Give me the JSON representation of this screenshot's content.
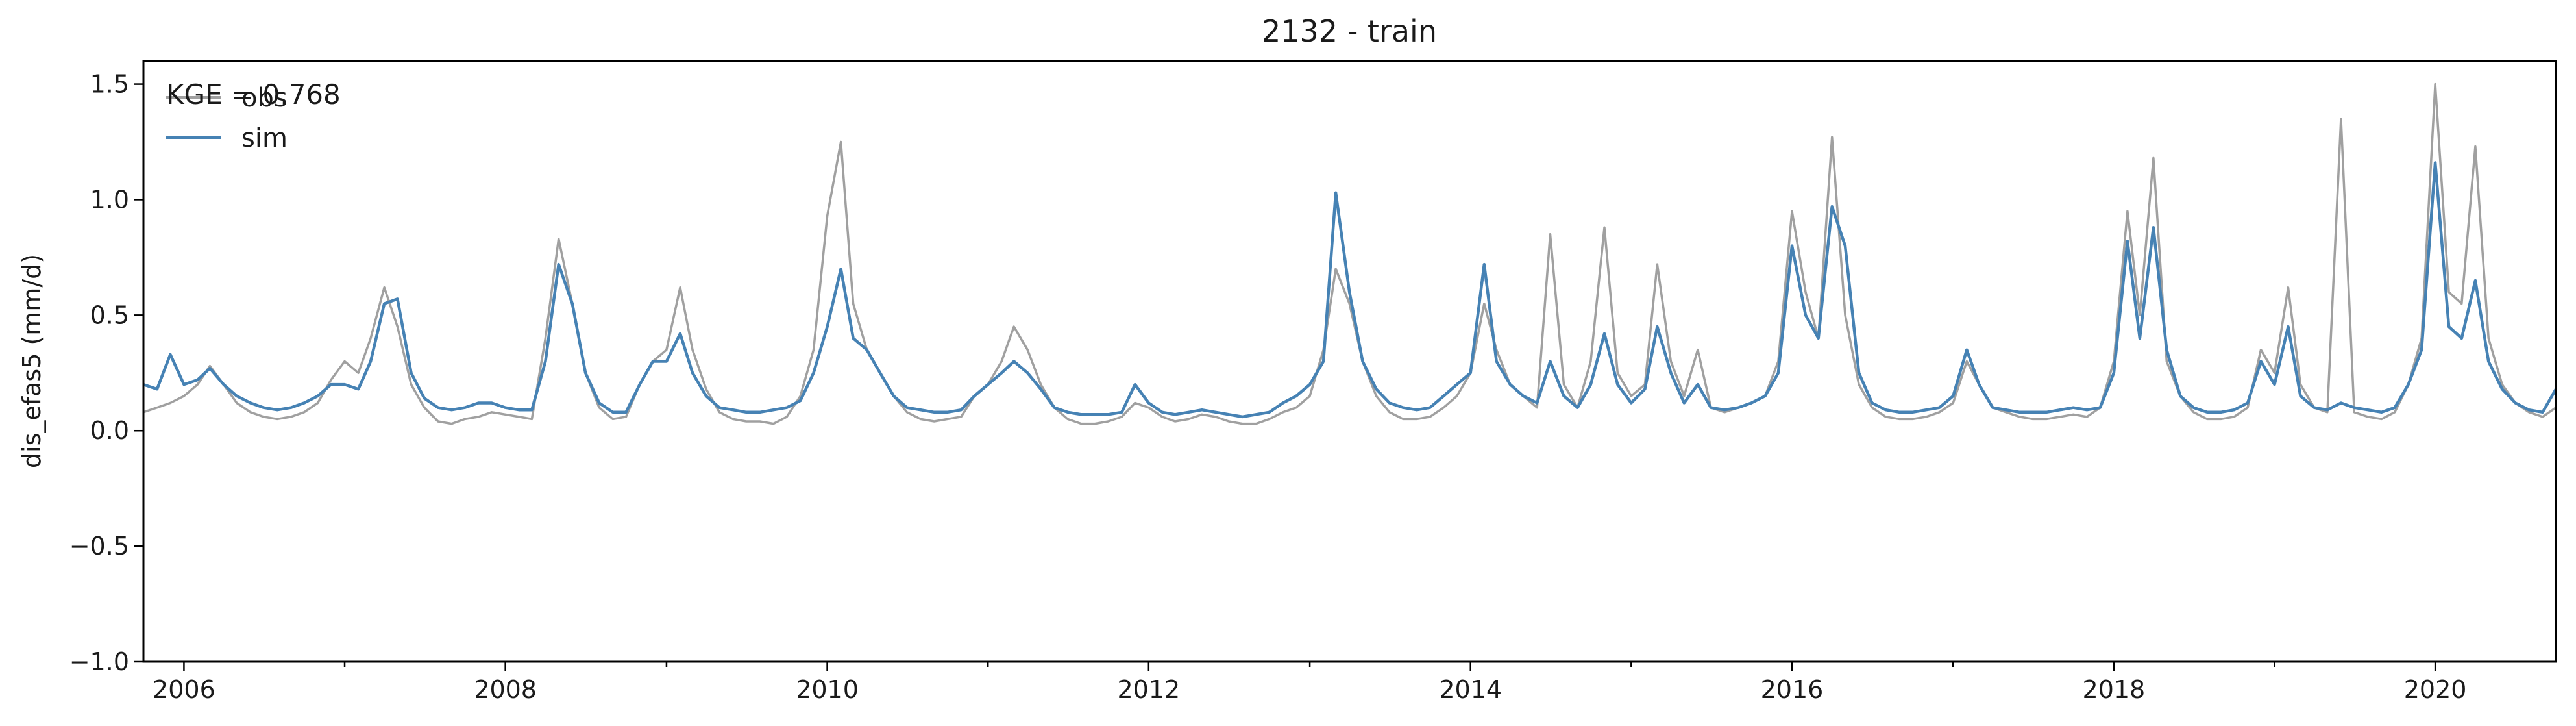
{
  "chart_data": {
    "type": "line",
    "title": "2132 - train",
    "xlabel": "",
    "ylabel": "dis_efas5 (mm/d)",
    "xlim": [
      "2005-10-01",
      "2020-10-01"
    ],
    "ylim": [
      -1.0,
      1.6
    ],
    "xticks": [
      "2006",
      "2008",
      "2010",
      "2012",
      "2014",
      "2016",
      "2018",
      "2020"
    ],
    "yticks": [
      "−1.0",
      "−0.5",
      "0.0",
      "0.5",
      "1.0",
      "1.5"
    ],
    "grid": false,
    "legend_position": "top-left",
    "annotation": "KGE = 0.768",
    "colors": {
      "obs": "#a0a0a0",
      "sim": "#4682b4"
    },
    "series": [
      {
        "name": "obs",
        "x": [
          "2005-10-01",
          "2005-11-01",
          "2005-12-01",
          "2006-01-01",
          "2006-02-01",
          "2006-03-01",
          "2006-04-01",
          "2006-05-01",
          "2006-06-01",
          "2006-07-01",
          "2006-08-01",
          "2006-09-01",
          "2006-10-01",
          "2006-11-01",
          "2006-12-01",
          "2007-01-01",
          "2007-02-01",
          "2007-03-01",
          "2007-04-01",
          "2007-05-01",
          "2007-06-01",
          "2007-07-01",
          "2007-08-01",
          "2007-09-01",
          "2007-10-01",
          "2007-11-01",
          "2007-12-01",
          "2008-01-01",
          "2008-02-01",
          "2008-03-01",
          "2008-04-01",
          "2008-05-01",
          "2008-06-01",
          "2008-07-01",
          "2008-08-01",
          "2008-09-01",
          "2008-10-01",
          "2008-11-01",
          "2008-12-01",
          "2009-01-01",
          "2009-02-01",
          "2009-03-01",
          "2009-04-01",
          "2009-05-01",
          "2009-06-01",
          "2009-07-01",
          "2009-08-01",
          "2009-09-01",
          "2009-10-01",
          "2009-11-01",
          "2009-12-01",
          "2010-01-01",
          "2010-02-01",
          "2010-03-01",
          "2010-04-01",
          "2010-05-01",
          "2010-06-01",
          "2010-07-01",
          "2010-08-01",
          "2010-09-01",
          "2010-10-01",
          "2010-11-01",
          "2010-12-01",
          "2011-01-01",
          "2011-02-01",
          "2011-03-01",
          "2011-04-01",
          "2011-05-01",
          "2011-06-01",
          "2011-07-01",
          "2011-08-01",
          "2011-09-01",
          "2011-10-01",
          "2011-11-01",
          "2011-12-01",
          "2012-01-01",
          "2012-02-01",
          "2012-03-01",
          "2012-04-01",
          "2012-05-01",
          "2012-06-01",
          "2012-07-01",
          "2012-08-01",
          "2012-09-01",
          "2012-10-01",
          "2012-11-01",
          "2012-12-01",
          "2013-01-01",
          "2013-02-01",
          "2013-03-01",
          "2013-04-01",
          "2013-05-01",
          "2013-06-01",
          "2013-07-01",
          "2013-08-01",
          "2013-09-01",
          "2013-10-01",
          "2013-11-01",
          "2013-12-01",
          "2014-01-01",
          "2014-02-01",
          "2014-03-01",
          "2014-04-01",
          "2014-05-01",
          "2014-06-01",
          "2014-07-01",
          "2014-08-01",
          "2014-09-01",
          "2014-10-01",
          "2014-11-01",
          "2014-12-01",
          "2015-01-01",
          "2015-02-01",
          "2015-03-01",
          "2015-04-01",
          "2015-05-01",
          "2015-06-01",
          "2015-07-01",
          "2015-08-01",
          "2015-09-01",
          "2015-10-01",
          "2015-11-01",
          "2015-12-01",
          "2016-01-01",
          "2016-02-01",
          "2016-03-01",
          "2016-04-01",
          "2016-05-01",
          "2016-06-01",
          "2016-07-01",
          "2016-08-01",
          "2016-09-01",
          "2016-10-01",
          "2016-11-01",
          "2016-12-01",
          "2017-01-01",
          "2017-02-01",
          "2017-03-01",
          "2017-04-01",
          "2017-05-01",
          "2017-06-01",
          "2017-07-01",
          "2017-08-01",
          "2017-09-01",
          "2017-10-01",
          "2017-11-01",
          "2017-12-01",
          "2018-01-01",
          "2018-02-01",
          "2018-03-01",
          "2018-04-01",
          "2018-05-01",
          "2018-06-01",
          "2018-07-01",
          "2018-08-01",
          "2018-09-01",
          "2018-10-01",
          "2018-11-01",
          "2018-12-01",
          "2019-01-01",
          "2019-02-01",
          "2019-03-01",
          "2019-04-01",
          "2019-05-01",
          "2019-06-01",
          "2019-07-01",
          "2019-08-01",
          "2019-09-01",
          "2019-10-01",
          "2019-11-01",
          "2019-12-01",
          "2020-01-01",
          "2020-02-01",
          "2020-03-01",
          "2020-04-01",
          "2020-05-01",
          "2020-06-01",
          "2020-07-01",
          "2020-08-01",
          "2020-09-01",
          "2020-10-01"
        ],
        "y": [
          0.08,
          0.1,
          0.12,
          0.15,
          0.2,
          0.28,
          0.2,
          0.12,
          0.08,
          0.06,
          0.05,
          0.06,
          0.08,
          0.12,
          0.22,
          0.3,
          0.25,
          0.4,
          0.62,
          0.45,
          0.2,
          0.1,
          0.04,
          0.03,
          0.05,
          0.06,
          0.08,
          0.07,
          0.06,
          0.05,
          0.4,
          0.83,
          0.55,
          0.25,
          0.1,
          0.05,
          0.06,
          0.2,
          0.3,
          0.35,
          0.62,
          0.35,
          0.18,
          0.08,
          0.05,
          0.04,
          0.04,
          0.03,
          0.06,
          0.15,
          0.35,
          0.93,
          1.25,
          0.55,
          0.35,
          0.25,
          0.15,
          0.08,
          0.05,
          0.04,
          0.05,
          0.06,
          0.15,
          0.2,
          0.3,
          0.45,
          0.35,
          0.2,
          0.1,
          0.05,
          0.03,
          0.03,
          0.04,
          0.06,
          0.12,
          0.1,
          0.06,
          0.04,
          0.05,
          0.07,
          0.06,
          0.04,
          0.03,
          0.03,
          0.05,
          0.08,
          0.1,
          0.15,
          0.35,
          0.7,
          0.55,
          0.3,
          0.15,
          0.08,
          0.05,
          0.05,
          0.06,
          0.1,
          0.15,
          0.25,
          0.55,
          0.35,
          0.2,
          0.15,
          0.1,
          0.85,
          0.2,
          0.1,
          0.3,
          0.88,
          0.25,
          0.15,
          0.2,
          0.72,
          0.3,
          0.15,
          0.35,
          0.1,
          0.08,
          0.1,
          0.12,
          0.15,
          0.3,
          0.95,
          0.6,
          0.4,
          1.27,
          0.5,
          0.2,
          0.1,
          0.06,
          0.05,
          0.05,
          0.06,
          0.08,
          0.12,
          0.3,
          0.2,
          0.1,
          0.08,
          0.06,
          0.05,
          0.05,
          0.06,
          0.07,
          0.06,
          0.1,
          0.3,
          0.95,
          0.5,
          1.18,
          0.3,
          0.15,
          0.08,
          0.05,
          0.05,
          0.06,
          0.1,
          0.35,
          0.25,
          0.62,
          0.2,
          0.1,
          0.08,
          1.35,
          0.08,
          0.06,
          0.05,
          0.08,
          0.2,
          0.4,
          1.5,
          0.6,
          0.55,
          1.23,
          0.4,
          0.2,
          0.12,
          0.08,
          0.06,
          0.1
        ]
      },
      {
        "name": "sim",
        "x": [
          "2005-10-01",
          "2005-11-01",
          "2005-12-01",
          "2006-01-01",
          "2006-02-01",
          "2006-03-01",
          "2006-04-01",
          "2006-05-01",
          "2006-06-01",
          "2006-07-01",
          "2006-08-01",
          "2006-09-01",
          "2006-10-01",
          "2006-11-01",
          "2006-12-01",
          "2007-01-01",
          "2007-02-01",
          "2007-03-01",
          "2007-04-01",
          "2007-05-01",
          "2007-06-01",
          "2007-07-01",
          "2007-08-01",
          "2007-09-01",
          "2007-10-01",
          "2007-11-01",
          "2007-12-01",
          "2008-01-01",
          "2008-02-01",
          "2008-03-01",
          "2008-04-01",
          "2008-05-01",
          "2008-06-01",
          "2008-07-01",
          "2008-08-01",
          "2008-09-01",
          "2008-10-01",
          "2008-11-01",
          "2008-12-01",
          "2009-01-01",
          "2009-02-01",
          "2009-03-01",
          "2009-04-01",
          "2009-05-01",
          "2009-06-01",
          "2009-07-01",
          "2009-08-01",
          "2009-09-01",
          "2009-10-01",
          "2009-11-01",
          "2009-12-01",
          "2010-01-01",
          "2010-02-01",
          "2010-03-01",
          "2010-04-01",
          "2010-05-01",
          "2010-06-01",
          "2010-07-01",
          "2010-08-01",
          "2010-09-01",
          "2010-10-01",
          "2010-11-01",
          "2010-12-01",
          "2011-01-01",
          "2011-02-01",
          "2011-03-01",
          "2011-04-01",
          "2011-05-01",
          "2011-06-01",
          "2011-07-01",
          "2011-08-01",
          "2011-09-01",
          "2011-10-01",
          "2011-11-01",
          "2011-12-01",
          "2012-01-01",
          "2012-02-01",
          "2012-03-01",
          "2012-04-01",
          "2012-05-01",
          "2012-06-01",
          "2012-07-01",
          "2012-08-01",
          "2012-09-01",
          "2012-10-01",
          "2012-11-01",
          "2012-12-01",
          "2013-01-01",
          "2013-02-01",
          "2013-03-01",
          "2013-04-01",
          "2013-05-01",
          "2013-06-01",
          "2013-07-01",
          "2013-08-01",
          "2013-09-01",
          "2013-10-01",
          "2013-11-01",
          "2013-12-01",
          "2014-01-01",
          "2014-02-01",
          "2014-03-01",
          "2014-04-01",
          "2014-05-01",
          "2014-06-01",
          "2014-07-01",
          "2014-08-01",
          "2014-09-01",
          "2014-10-01",
          "2014-11-01",
          "2014-12-01",
          "2015-01-01",
          "2015-02-01",
          "2015-03-01",
          "2015-04-01",
          "2015-05-01",
          "2015-06-01",
          "2015-07-01",
          "2015-08-01",
          "2015-09-01",
          "2015-10-01",
          "2015-11-01",
          "2015-12-01",
          "2016-01-01",
          "2016-02-01",
          "2016-03-01",
          "2016-04-01",
          "2016-05-01",
          "2016-06-01",
          "2016-07-01",
          "2016-08-01",
          "2016-09-01",
          "2016-10-01",
          "2016-11-01",
          "2016-12-01",
          "2017-01-01",
          "2017-02-01",
          "2017-03-01",
          "2017-04-01",
          "2017-05-01",
          "2017-06-01",
          "2017-07-01",
          "2017-08-01",
          "2017-09-01",
          "2017-10-01",
          "2017-11-01",
          "2017-12-01",
          "2018-01-01",
          "2018-02-01",
          "2018-03-01",
          "2018-04-01",
          "2018-05-01",
          "2018-06-01",
          "2018-07-01",
          "2018-08-01",
          "2018-09-01",
          "2018-10-01",
          "2018-11-01",
          "2018-12-01",
          "2019-01-01",
          "2019-02-01",
          "2019-03-01",
          "2019-04-01",
          "2019-05-01",
          "2019-06-01",
          "2019-07-01",
          "2019-08-01",
          "2019-09-01",
          "2019-10-01",
          "2019-11-01",
          "2019-12-01",
          "2020-01-01",
          "2020-02-01",
          "2020-03-01",
          "2020-04-01",
          "2020-05-01",
          "2020-06-01",
          "2020-07-01",
          "2020-08-01",
          "2020-09-01",
          "2020-10-01"
        ],
        "y": [
          0.2,
          0.18,
          0.33,
          0.2,
          0.22,
          0.27,
          0.2,
          0.15,
          0.12,
          0.1,
          0.09,
          0.1,
          0.12,
          0.15,
          0.2,
          0.2,
          0.18,
          0.3,
          0.55,
          0.57,
          0.25,
          0.14,
          0.1,
          0.09,
          0.1,
          0.12,
          0.12,
          0.1,
          0.09,
          0.09,
          0.3,
          0.72,
          0.55,
          0.25,
          0.12,
          0.08,
          0.08,
          0.2,
          0.3,
          0.3,
          0.42,
          0.25,
          0.15,
          0.1,
          0.09,
          0.08,
          0.08,
          0.09,
          0.1,
          0.13,
          0.25,
          0.45,
          0.7,
          0.4,
          0.35,
          0.25,
          0.15,
          0.1,
          0.09,
          0.08,
          0.08,
          0.09,
          0.15,
          0.2,
          0.25,
          0.3,
          0.25,
          0.18,
          0.1,
          0.08,
          0.07,
          0.07,
          0.07,
          0.08,
          0.2,
          0.12,
          0.08,
          0.07,
          0.08,
          0.09,
          0.08,
          0.07,
          0.06,
          0.07,
          0.08,
          0.12,
          0.15,
          0.2,
          0.3,
          1.03,
          0.6,
          0.3,
          0.18,
          0.12,
          0.1,
          0.09,
          0.1,
          0.15,
          0.2,
          0.25,
          0.72,
          0.3,
          0.2,
          0.15,
          0.12,
          0.3,
          0.15,
          0.1,
          0.2,
          0.42,
          0.2,
          0.12,
          0.18,
          0.45,
          0.25,
          0.12,
          0.2,
          0.1,
          0.09,
          0.1,
          0.12,
          0.15,
          0.25,
          0.8,
          0.5,
          0.4,
          0.97,
          0.8,
          0.25,
          0.12,
          0.09,
          0.08,
          0.08,
          0.09,
          0.1,
          0.15,
          0.35,
          0.2,
          0.1,
          0.09,
          0.08,
          0.08,
          0.08,
          0.09,
          0.1,
          0.09,
          0.1,
          0.25,
          0.82,
          0.4,
          0.88,
          0.35,
          0.15,
          0.1,
          0.08,
          0.08,
          0.09,
          0.12,
          0.3,
          0.2,
          0.45,
          0.15,
          0.1,
          0.09,
          0.12,
          0.1,
          0.09,
          0.08,
          0.1,
          0.2,
          0.35,
          1.16,
          0.45,
          0.4,
          0.65,
          0.3,
          0.18,
          0.12,
          0.09,
          0.08,
          0.18
        ]
      }
    ]
  }
}
